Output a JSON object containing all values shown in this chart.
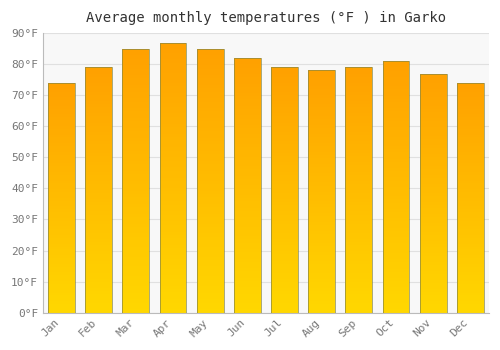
{
  "title": "Average monthly temperatures (°F ) in Garko",
  "months": [
    "Jan",
    "Feb",
    "Mar",
    "Apr",
    "May",
    "Jun",
    "Jul",
    "Aug",
    "Sep",
    "Oct",
    "Nov",
    "Dec"
  ],
  "values": [
    74,
    79,
    85,
    87,
    85,
    82,
    79,
    78,
    79,
    81,
    77,
    74
  ],
  "bar_color_top": "#FFA020",
  "bar_color_bottom": "#FFD700",
  "background_color": "#FFFFFF",
  "plot_bg_color": "#F8F8F8",
  "ylim": [
    0,
    90
  ],
  "ytick_step": 10,
  "grid_color": "#E0E0E0",
  "title_fontsize": 10,
  "tick_fontsize": 8,
  "bar_width": 0.72,
  "bar_edge_color": "#888844",
  "bar_edge_width": 0.5
}
